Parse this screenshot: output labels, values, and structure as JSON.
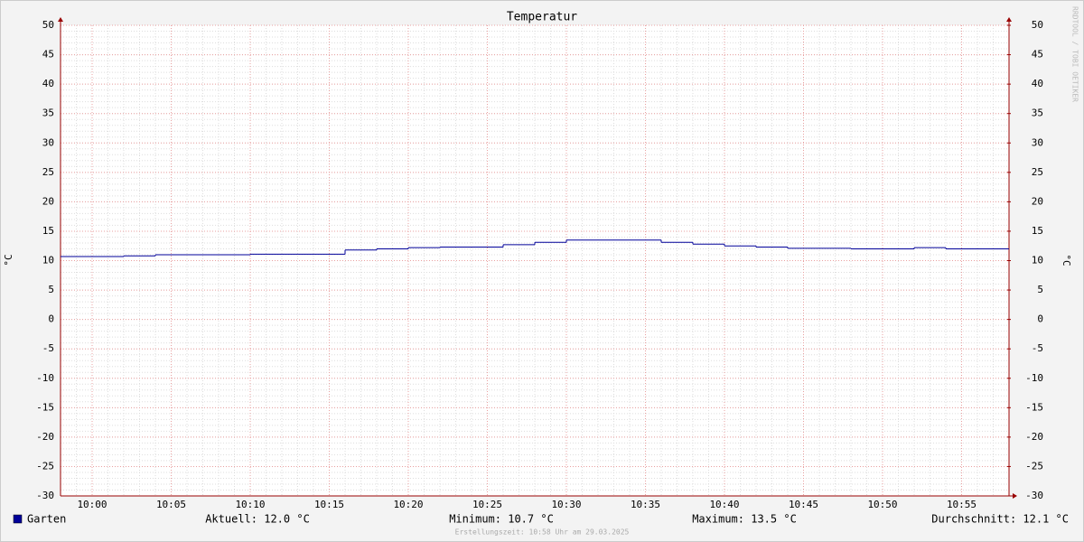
{
  "chart_data": {
    "type": "step",
    "title": "Temperatur",
    "y_label": "°C",
    "y2_label": "°C",
    "watermark": "RRDTOOL / TOBI OETIKER",
    "footer": "Erstellungszeit: 10:58 Uhr am 29.03.2025",
    "xlim": [
      "09:58",
      "10:58"
    ],
    "xticks": [
      "10:00",
      "10:05",
      "10:10",
      "10:15",
      "10:20",
      "10:25",
      "10:30",
      "10:35",
      "10:40",
      "10:45",
      "10:50",
      "10:55"
    ],
    "ylim": [
      -30,
      50
    ],
    "yticks": [
      50,
      45,
      40,
      35,
      30,
      25,
      20,
      15,
      10,
      5,
      0,
      -5,
      -10,
      -15,
      -20,
      -25,
      -30
    ],
    "y2lim": [
      -30,
      50
    ],
    "y2ticks": [
      50,
      45,
      40,
      35,
      30,
      25,
      20,
      15,
      10,
      5,
      0,
      -5,
      -10,
      -15,
      -20,
      -25,
      -30
    ],
    "grid": true,
    "x": [
      "09:58",
      "10:00",
      "10:02",
      "10:04",
      "10:06",
      "10:08",
      "10:10",
      "10:12",
      "10:14",
      "10:16",
      "10:18",
      "10:20",
      "10:22",
      "10:24",
      "10:26",
      "10:28",
      "10:30",
      "10:32",
      "10:34",
      "10:36",
      "10:38",
      "10:40",
      "10:42",
      "10:44",
      "10:46",
      "10:48",
      "10:50",
      "10:52",
      "10:54",
      "10:56"
    ],
    "series": [
      {
        "name": "Garten",
        "color": "#000099",
        "values": [
          10.7,
          10.7,
          10.8,
          11.0,
          11.0,
          11.0,
          11.1,
          11.1,
          11.1,
          11.8,
          12.0,
          12.2,
          12.3,
          12.3,
          12.7,
          13.1,
          13.5,
          13.5,
          13.5,
          13.1,
          12.8,
          12.5,
          12.3,
          12.1,
          12.1,
          12.0,
          12.0,
          12.2,
          12.0,
          12.0
        ]
      }
    ],
    "stats": [
      "Aktuell: 12.0 °C",
      "Minimum: 10.7 °C",
      "Maximum: 13.5 °C",
      "Durchschnitt: 12.1 °C"
    ]
  }
}
